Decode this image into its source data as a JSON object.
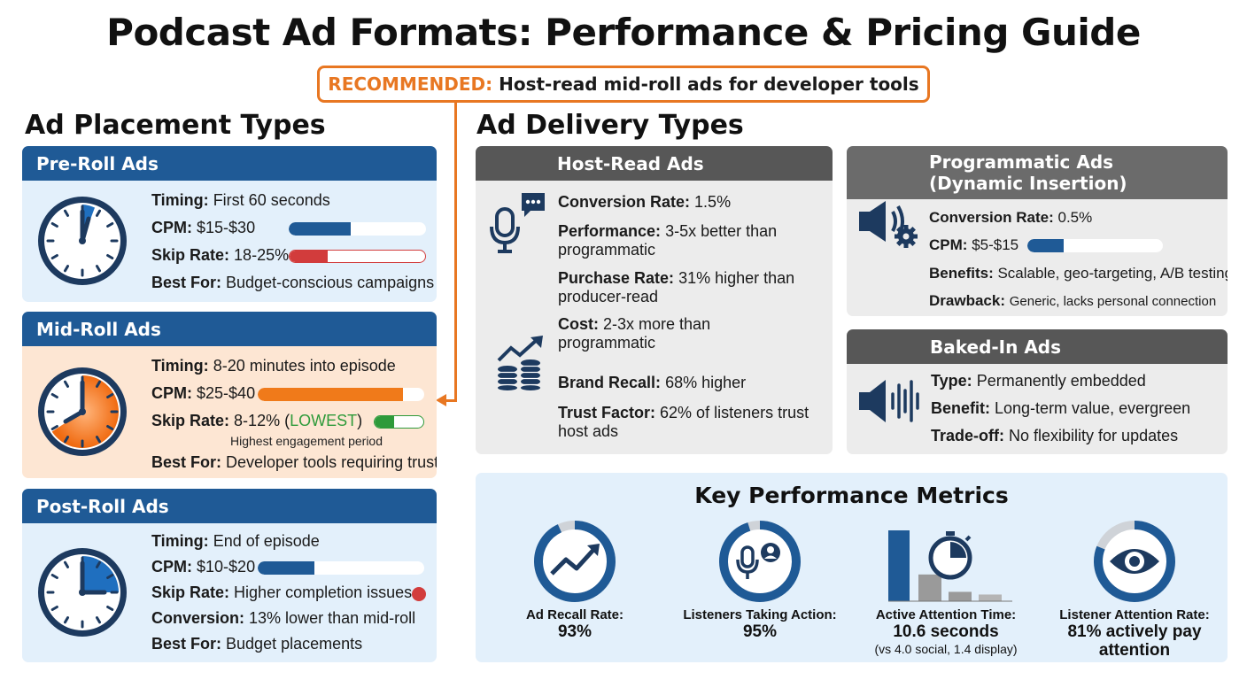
{
  "title": "Podcast Ad Formats: Performance & Pricing Guide",
  "recommendation": {
    "prefix": "RECOMMENDED:",
    "text": "Host-read mid-roll ads for developer tools"
  },
  "colors": {
    "accent": "#e87722",
    "blue": "#1f5a96",
    "red": "#d23c3c",
    "green": "#2e9a3a",
    "orange": "#f07a1a"
  },
  "placement": {
    "heading": "Ad Placement Types",
    "pre_roll": {
      "title": "Pre-Roll Ads",
      "icon": "clock-icon",
      "timing_label": "Timing:",
      "timing": "First 60 seconds",
      "cpm_label": "CPM:",
      "cpm": "$15-$30",
      "cpm_fill": 0.45,
      "skip_label": "Skip Rate:",
      "skip": "18-25%",
      "skip_fill": 0.28,
      "best_label": "Best For:",
      "best": "Budget-conscious campaigns"
    },
    "mid_roll": {
      "title": "Mid-Roll Ads",
      "icon": "clock-icon",
      "timing_label": "Timing:",
      "timing": "8-20 minutes into episode",
      "cpm_label": "CPM:",
      "cpm": "$25-$40",
      "cpm_fill": 0.87,
      "skip_label": "Skip Rate:",
      "skip_prefix": "8-12% (",
      "skip_lowest": "LOWEST",
      "skip_suffix": ")",
      "skip_fill": 0.4,
      "note": "Highest engagement period",
      "best_label": "Best For:",
      "best": "Developer tools requiring trust"
    },
    "post_roll": {
      "title": "Post-Roll Ads",
      "icon": "clock-icon",
      "timing_label": "Timing:",
      "timing": "End of episode",
      "cpm_label": "CPM:",
      "cpm": "$10-$20",
      "cpm_fill": 0.34,
      "skip_label": "Skip Rate:",
      "skip": "Higher completion issues",
      "conv_label": "Conversion:",
      "conv": "13% lower than mid-roll",
      "best_label": "Best For:",
      "best": "Budget placements"
    }
  },
  "delivery": {
    "heading": "Ad Delivery Types",
    "host_read": {
      "title": "Host-Read Ads",
      "conv_label": "Conversion Rate:",
      "conv": "1.5%",
      "perf_label": "Performance:",
      "perf_1": "3-5x better than",
      "perf_2": "programmatic",
      "purchase_label": "Purchase Rate:",
      "purchase_1": "31% higher than",
      "purchase_2": "producer-read",
      "cost_label": "Cost:",
      "cost_1": "2-3x more than",
      "cost_2": "programmatic",
      "recall_label": "Brand Recall:",
      "recall": "68% higher",
      "trust_label": "Trust Factor:",
      "trust_1": "62% of listeners trust",
      "trust_2": "host ads"
    },
    "programmatic": {
      "title_1": "Programmatic Ads",
      "title_2": "(Dynamic Insertion)",
      "conv_label": "Conversion Rate:",
      "conv": "0.5%",
      "cpm_label": "CPM:",
      "cpm": "$5-$15",
      "cpm_fill": 0.27,
      "benefits_label": "Benefits:",
      "benefits": "Scalable, geo-targeting, A/B testing",
      "drawback_label": "Drawback:",
      "drawback": "Generic, lacks personal connection"
    },
    "baked_in": {
      "title": "Baked-In Ads",
      "type_label": "Type:",
      "type": "Permanently embedded",
      "benefit_label": "Benefit:",
      "benefit": "Long-term value, evergreen",
      "tradeoff_label": "Trade-off:",
      "tradeoff": "No flexibility for updates"
    }
  },
  "metrics": {
    "title": "Key Performance Metrics",
    "ad_recall": {
      "label": "Ad Recall Rate:",
      "value": "93%",
      "fraction": 0.93
    },
    "taking_action": {
      "label": "Listeners Taking Action:",
      "value": "95%",
      "fraction": 0.95
    },
    "attention_time": {
      "label": "Active Attention Time:",
      "value": "10.6 seconds",
      "sub": "(vs 4.0 social, 1.4 display)",
      "bars": [
        10.6,
        4.0,
        1.4,
        1.0
      ]
    },
    "attention_rate": {
      "label": "Listener Attention Rate:",
      "value_1": "81% actively pay",
      "value_2": "attention",
      "fraction": 0.81
    }
  }
}
